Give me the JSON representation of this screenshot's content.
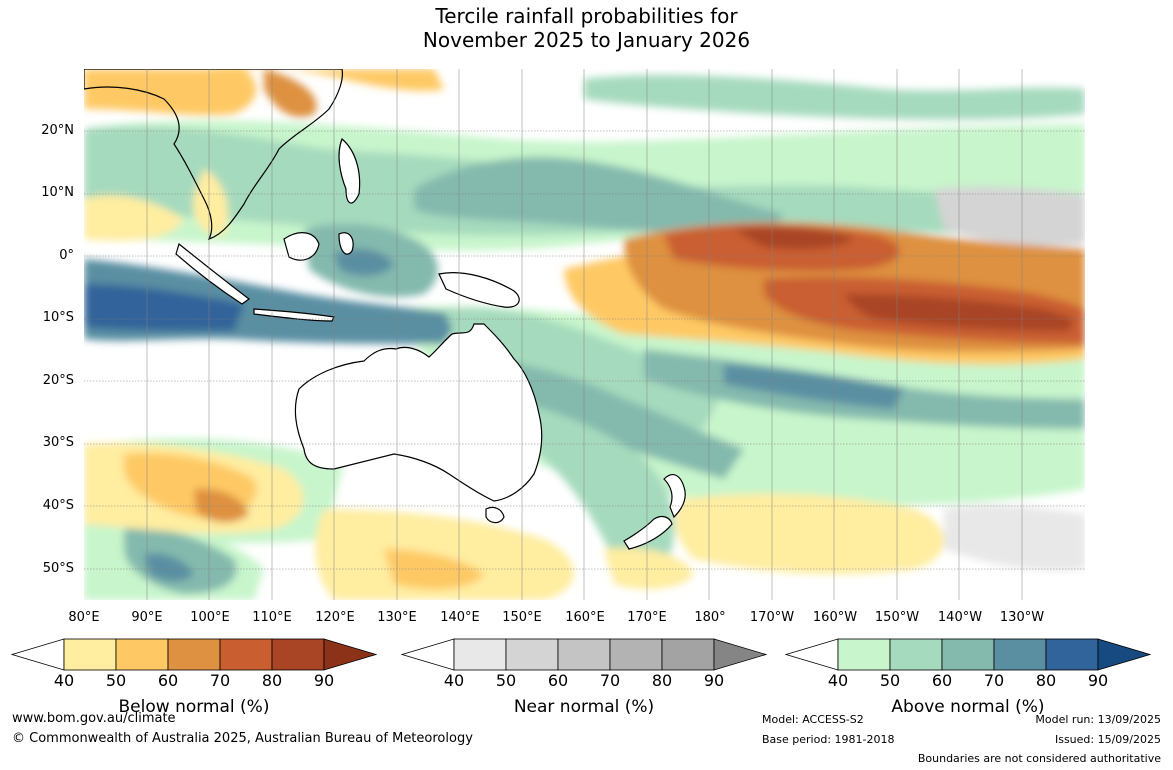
{
  "title": {
    "line1": "Tercile rainfall probabilities for",
    "line2": "November 2025 to January 2026"
  },
  "axes": {
    "latitudes": [
      "20°N",
      "10°N",
      "0°",
      "10°S",
      "20°S",
      "30°S",
      "40°S",
      "50°S"
    ],
    "longitudes": [
      "80°E",
      "90°E",
      "100°E",
      "110°E",
      "120°E",
      "130°E",
      "140°E",
      "150°E",
      "160°E",
      "170°E",
      "180°",
      "170°W",
      "160°W",
      "150°W",
      "140°W",
      "130°W"
    ]
  },
  "colorbars": {
    "ticks": [
      "40",
      "50",
      "60",
      "70",
      "80",
      "90"
    ],
    "below": {
      "label": "Below normal (%)",
      "colors": [
        "#ffffff",
        "#ffeda0",
        "#fec965",
        "#de9140",
        "#c95e30",
        "#a94425",
        "#8c3218"
      ]
    },
    "near": {
      "label": "Near normal (%)",
      "colors": [
        "#ffffff",
        "#e8e8e8",
        "#d4d4d4",
        "#c4c4c4",
        "#b3b3b3",
        "#a3a3a3",
        "#858585"
      ]
    },
    "above": {
      "label": "Above normal (%)",
      "colors": [
        "#ffffff",
        "#c8f5cc",
        "#a6dabe",
        "#84b9ad",
        "#5a8fa2",
        "#31649a",
        "#164a81"
      ]
    }
  },
  "footer": {
    "url": "www.bom.gov.au/climate",
    "copyright": "© Commonwealth of Australia 2025, Australian Bureau of Meteorology",
    "model": "Model: ACCESS-S2",
    "base_period": "Base period: 1981-2018",
    "model_run": "Model run: 13/09/2025",
    "issued": "Issued: 15/09/2025",
    "boundaries": "Boundaries are not considered authoritative"
  }
}
